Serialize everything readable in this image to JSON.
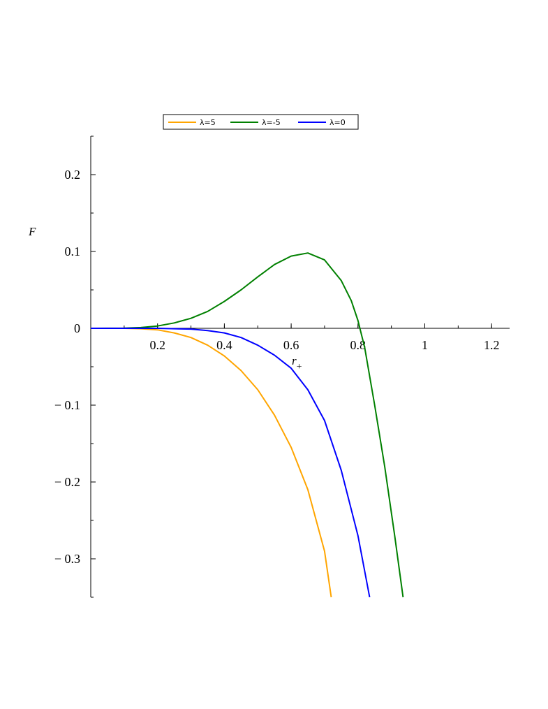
{
  "chart_data": {
    "type": "line",
    "title": "",
    "xlabel": "r",
    "xlabel_subscript": "+",
    "ylabel": "F",
    "xlim": [
      0,
      1.25
    ],
    "ylim": [
      -0.35,
      0.25
    ],
    "xticks": [
      0.2,
      0.4,
      0.6,
      0.8,
      1,
      1.2
    ],
    "xtick_labels": [
      "0.2",
      "0.4",
      "0.6",
      "0.8",
      "1",
      "1.2"
    ],
    "yticks": [
      0.2,
      0.1,
      0,
      -0.1,
      -0.2,
      -0.3
    ],
    "ytick_labels": [
      "0.2",
      "0.1",
      "0",
      "− 0.1",
      "− 0.2",
      "− 0.3"
    ],
    "grid": false,
    "legend_position": "top",
    "series": [
      {
        "name": "λ=5",
        "color": "#ffa500",
        "x": [
          0,
          0.1,
          0.15,
          0.2,
          0.25,
          0.3,
          0.35,
          0.4,
          0.45,
          0.5,
          0.55,
          0.6,
          0.65,
          0.7,
          0.72
        ],
        "y": [
          0,
          0,
          -0.0005,
          -0.002,
          -0.006,
          -0.012,
          -0.022,
          -0.036,
          -0.055,
          -0.08,
          -0.113,
          -0.155,
          -0.21,
          -0.29,
          -0.35
        ]
      },
      {
        "name": "λ=-5",
        "color": "#008000",
        "x": [
          0,
          0.1,
          0.15,
          0.2,
          0.25,
          0.3,
          0.35,
          0.4,
          0.45,
          0.5,
          0.55,
          0.6,
          0.65,
          0.7,
          0.75,
          0.78,
          0.8,
          0.82,
          0.85,
          0.88,
          0.91,
          0.935
        ],
        "y": [
          0,
          0.0003,
          0.001,
          0.003,
          0.007,
          0.013,
          0.022,
          0.035,
          0.05,
          0.067,
          0.083,
          0.094,
          0.098,
          0.089,
          0.062,
          0.036,
          0.01,
          -0.025,
          -0.1,
          -0.18,
          -0.27,
          -0.35
        ]
      },
      {
        "name": "λ=0",
        "color": "#0000ff",
        "x": [
          0,
          0.2,
          0.25,
          0.3,
          0.35,
          0.4,
          0.45,
          0.5,
          0.55,
          0.6,
          0.65,
          0.7,
          0.75,
          0.8,
          0.835
        ],
        "y": [
          0,
          0,
          -0.0005,
          -0.001,
          -0.003,
          -0.006,
          -0.012,
          -0.022,
          -0.035,
          -0.052,
          -0.08,
          -0.12,
          -0.185,
          -0.27,
          -0.35
        ]
      }
    ]
  }
}
